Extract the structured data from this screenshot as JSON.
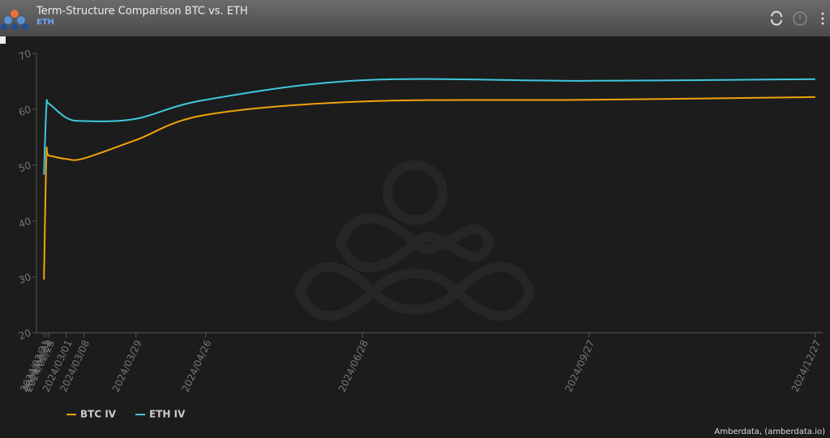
{
  "header": {
    "title": "Term-Structure Comparison BTC vs. ETH",
    "subtitle": "ETH"
  },
  "credits": "Amberdata, (amberdata.io)",
  "chart_data": {
    "type": "line",
    "x": [
      "2024/02/21",
      "2024/02/22",
      "2024/02/23",
      "2024/03/01",
      "2024/03/08",
      "2024/03/29",
      "2024/04/26",
      "2024/06/28",
      "2024/09/27",
      "2024/12/27"
    ],
    "series": [
      {
        "name": "BTC IV",
        "color": "#f0a30a",
        "values": [
          29.5,
          51.5,
          51.7,
          51.1,
          51.2,
          54.5,
          59,
          61.4,
          61.7,
          62.2
        ]
      },
      {
        "name": "ETH IV",
        "color": "#3fc8dc",
        "values": [
          48.3,
          60.5,
          61,
          58.5,
          57.9,
          58.3,
          61.7,
          65.2,
          65.1,
          65.4
        ]
      }
    ],
    "xlim": [
      "2024/02/18",
      "2024/12/30"
    ],
    "xticks": [
      "2024/02/21",
      "2024/02/22",
      "2024/02/23",
      "2024/03/01",
      "2024/03/08",
      "2024/03/29",
      "2024/04/26",
      "2024/06/28",
      "2024/09/27",
      "2024/12/27"
    ],
    "ylim": [
      20,
      70
    ],
    "yticks": [
      20,
      30,
      40,
      50,
      60,
      70
    ],
    "legend": "bottom-left"
  }
}
